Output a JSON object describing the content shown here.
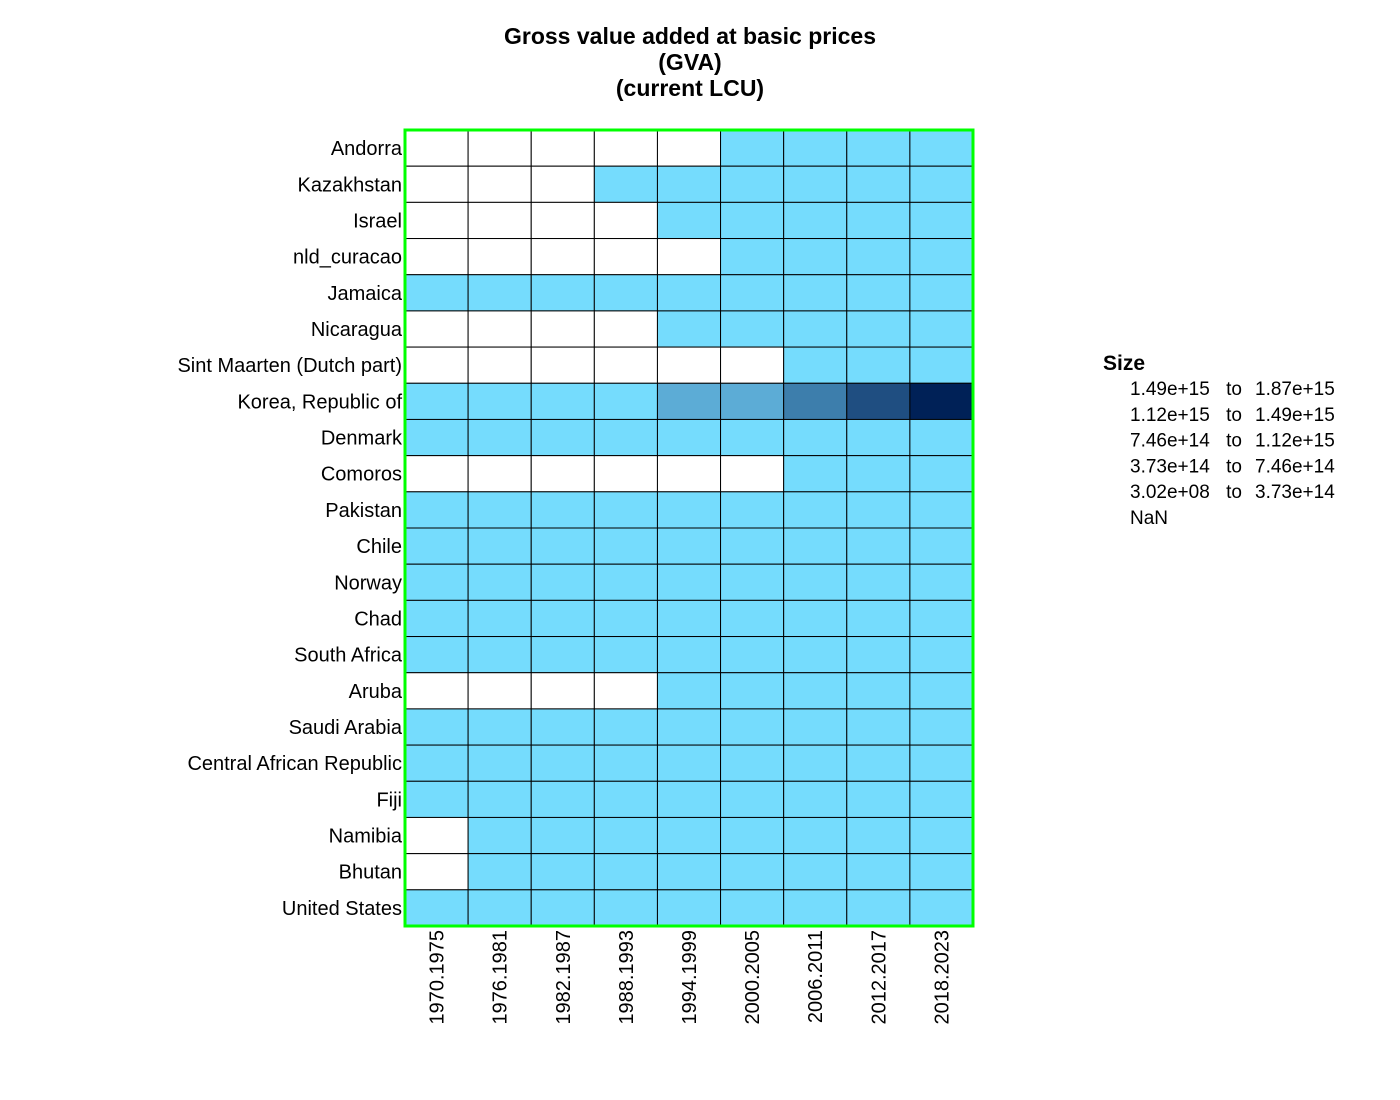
{
  "chart_data": {
    "type": "heatmap",
    "title": [
      "Gross value added at basic prices",
      "(GVA)",
      "(current LCU)"
    ],
    "xlabel": "",
    "ylabel": "",
    "x_categories": [
      "1970.1975",
      "1976.1981",
      "1982.1987",
      "1988.1993",
      "1994.1999",
      "2000.2005",
      "2006.2011",
      "2012.2017",
      "2018.2023"
    ],
    "y_categories": [
      "Andorra",
      "Kazakhstan",
      "Israel",
      "nld_curacao",
      "Jamaica",
      "Nicaragua",
      "Sint Maarten (Dutch part)",
      "Korea, Republic of",
      "Denmark",
      "Comoros",
      "Pakistan",
      "Chile",
      "Norway",
      "Chad",
      "South Africa",
      "Aruba",
      "Saudi Arabia",
      "Central African Republic",
      "Fiji",
      "Namibia",
      "Bhutan",
      "United States"
    ],
    "legend": {
      "title": "Size",
      "placement": "right",
      "bins": [
        {
          "from": "1.49e+15",
          "sep": "to",
          "to": "1.87e+15",
          "color": "#002157"
        },
        {
          "from": "1.12e+15",
          "sep": "to",
          "to": "1.49e+15",
          "color": "#1f4e81"
        },
        {
          "from": "7.46e+14",
          "sep": "to",
          "to": "1.12e+15",
          "color": "#3d7eac"
        },
        {
          "from": "3.73e+14",
          "sep": "to",
          "to": "7.46e+14",
          "color": "#5cacd6"
        },
        {
          "from": "3.02e+08",
          "sep": "to",
          "to": "3.73e+14",
          "color": "#75dcfd"
        }
      ],
      "nan_label": "NaN",
      "nan_color": "#ffffff"
    },
    "cell_bins_note": "values are legend bin indices: 0=1.49e+15..1.87e+15, 1=1.12e+15..1.49e+15, 2=7.46e+14..1.12e+15, 3=3.73e+14..7.46e+14, 4=3.02e+08..3.73e+14, null=NaN",
    "cells": [
      [
        null,
        null,
        null,
        null,
        null,
        4,
        4,
        4,
        4
      ],
      [
        null,
        null,
        null,
        4,
        4,
        4,
        4,
        4,
        4
      ],
      [
        null,
        null,
        null,
        null,
        4,
        4,
        4,
        4,
        4
      ],
      [
        null,
        null,
        null,
        null,
        null,
        4,
        4,
        4,
        4
      ],
      [
        4,
        4,
        4,
        4,
        4,
        4,
        4,
        4,
        4
      ],
      [
        null,
        null,
        null,
        null,
        4,
        4,
        4,
        4,
        4
      ],
      [
        null,
        null,
        null,
        null,
        null,
        null,
        4,
        4,
        4
      ],
      [
        4,
        4,
        4,
        4,
        3,
        3,
        2,
        1,
        0
      ],
      [
        4,
        4,
        4,
        4,
        4,
        4,
        4,
        4,
        4
      ],
      [
        null,
        null,
        null,
        null,
        null,
        null,
        4,
        4,
        4
      ],
      [
        4,
        4,
        4,
        4,
        4,
        4,
        4,
        4,
        4
      ],
      [
        4,
        4,
        4,
        4,
        4,
        4,
        4,
        4,
        4
      ],
      [
        4,
        4,
        4,
        4,
        4,
        4,
        4,
        4,
        4
      ],
      [
        4,
        4,
        4,
        4,
        4,
        4,
        4,
        4,
        4
      ],
      [
        4,
        4,
        4,
        4,
        4,
        4,
        4,
        4,
        4
      ],
      [
        null,
        null,
        null,
        null,
        4,
        4,
        4,
        4,
        4
      ],
      [
        4,
        4,
        4,
        4,
        4,
        4,
        4,
        4,
        4
      ],
      [
        4,
        4,
        4,
        4,
        4,
        4,
        4,
        4,
        4
      ],
      [
        4,
        4,
        4,
        4,
        4,
        4,
        4,
        4,
        4
      ],
      [
        null,
        4,
        4,
        4,
        4,
        4,
        4,
        4,
        4
      ],
      [
        null,
        4,
        4,
        4,
        4,
        4,
        4,
        4,
        4
      ],
      [
        4,
        4,
        4,
        4,
        4,
        4,
        4,
        4,
        4
      ]
    ],
    "border_color": "#00ff00",
    "grid": true
  }
}
